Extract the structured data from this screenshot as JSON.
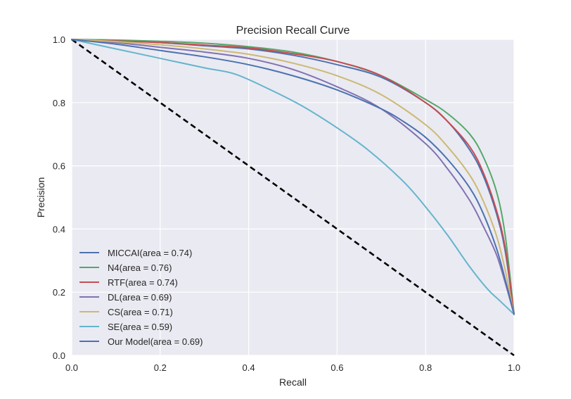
{
  "chart_data": {
    "type": "line",
    "title": "Precision Recall Curve",
    "xlabel": "Recall",
    "ylabel": "Precision",
    "xlim": [
      0.0,
      1.0
    ],
    "ylim": [
      0.0,
      1.0
    ],
    "x_ticks": [
      "0.0",
      "0.2",
      "0.4",
      "0.6",
      "0.8",
      "1.0"
    ],
    "y_ticks": [
      "0.0",
      "0.2",
      "0.4",
      "0.6",
      "0.8",
      "1.0"
    ],
    "grid": true,
    "legend_position": "lower-left",
    "colors": {
      "plot_background": "#EAEAF2",
      "grid": "#FFFFFF",
      "baseline": "#000000"
    },
    "baseline": {
      "style": "dashed",
      "x": [
        0.0,
        1.0
      ],
      "y": [
        1.0,
        0.0
      ]
    },
    "series": [
      {
        "name": "MICCAI(area = 0.74)",
        "color": "#4C72B0",
        "x": [
          0.0,
          0.1,
          0.2,
          0.3,
          0.4,
          0.5,
          0.6,
          0.7,
          0.8,
          0.85,
          0.9,
          0.93,
          0.96,
          0.98,
          1.0
        ],
        "y": [
          1.0,
          0.997,
          0.99,
          0.98,
          0.97,
          0.95,
          0.92,
          0.88,
          0.8,
          0.74,
          0.65,
          0.57,
          0.45,
          0.33,
          0.13
        ]
      },
      {
        "name": "N4(area = 0.76)",
        "color": "#55A868",
        "x": [
          0.0,
          0.1,
          0.2,
          0.3,
          0.4,
          0.5,
          0.6,
          0.7,
          0.8,
          0.85,
          0.9,
          0.93,
          0.96,
          0.98,
          1.0
        ],
        "y": [
          1.0,
          0.998,
          0.994,
          0.988,
          0.977,
          0.96,
          0.93,
          0.885,
          0.81,
          0.765,
          0.7,
          0.63,
          0.52,
          0.38,
          0.13
        ]
      },
      {
        "name": "RTF(area = 0.74)",
        "color": "#C44E52",
        "x": [
          0.0,
          0.1,
          0.2,
          0.3,
          0.4,
          0.5,
          0.6,
          0.7,
          0.8,
          0.85,
          0.9,
          0.93,
          0.96,
          0.98,
          1.0
        ],
        "y": [
          1.0,
          0.995,
          0.99,
          0.982,
          0.973,
          0.955,
          0.93,
          0.885,
          0.8,
          0.74,
          0.66,
          0.58,
          0.46,
          0.34,
          0.13
        ]
      },
      {
        "name": "DL(area = 0.69)",
        "color": "#8172B2",
        "x": [
          0.0,
          0.1,
          0.2,
          0.3,
          0.4,
          0.5,
          0.6,
          0.7,
          0.8,
          0.85,
          0.9,
          0.93,
          0.96,
          0.98,
          1.0
        ],
        "y": [
          1.0,
          0.99,
          0.975,
          0.96,
          0.94,
          0.905,
          0.85,
          0.78,
          0.67,
          0.59,
          0.49,
          0.41,
          0.32,
          0.23,
          0.13
        ]
      },
      {
        "name": "CS(area = 0.71)",
        "color": "#CCB974",
        "x": [
          0.0,
          0.1,
          0.2,
          0.3,
          0.4,
          0.5,
          0.6,
          0.7,
          0.8,
          0.85,
          0.9,
          0.93,
          0.96,
          0.98,
          1.0
        ],
        "y": [
          1.0,
          0.993,
          0.983,
          0.97,
          0.953,
          0.925,
          0.885,
          0.825,
          0.73,
          0.66,
          0.57,
          0.49,
          0.38,
          0.27,
          0.13
        ]
      },
      {
        "name": "SE(area = 0.59)",
        "color": "#64B5CD",
        "x": [
          0.0,
          0.1,
          0.2,
          0.3,
          0.37,
          0.45,
          0.52,
          0.6,
          0.67,
          0.75,
          0.8,
          0.85,
          0.9,
          0.94,
          0.97,
          1.0
        ],
        "y": [
          1.0,
          0.97,
          0.94,
          0.91,
          0.89,
          0.84,
          0.79,
          0.72,
          0.65,
          0.55,
          0.47,
          0.38,
          0.28,
          0.21,
          0.17,
          0.13
        ]
      },
      {
        "name": "Our Model(area = 0.69)",
        "color": "#4C72B0",
        "x": [
          0.0,
          0.1,
          0.2,
          0.3,
          0.4,
          0.5,
          0.6,
          0.7,
          0.75,
          0.8,
          0.85,
          0.9,
          0.93,
          0.96,
          0.98,
          1.0
        ],
        "y": [
          1.0,
          0.985,
          0.965,
          0.945,
          0.92,
          0.885,
          0.84,
          0.78,
          0.74,
          0.69,
          0.62,
          0.53,
          0.45,
          0.34,
          0.24,
          0.13
        ]
      }
    ]
  }
}
